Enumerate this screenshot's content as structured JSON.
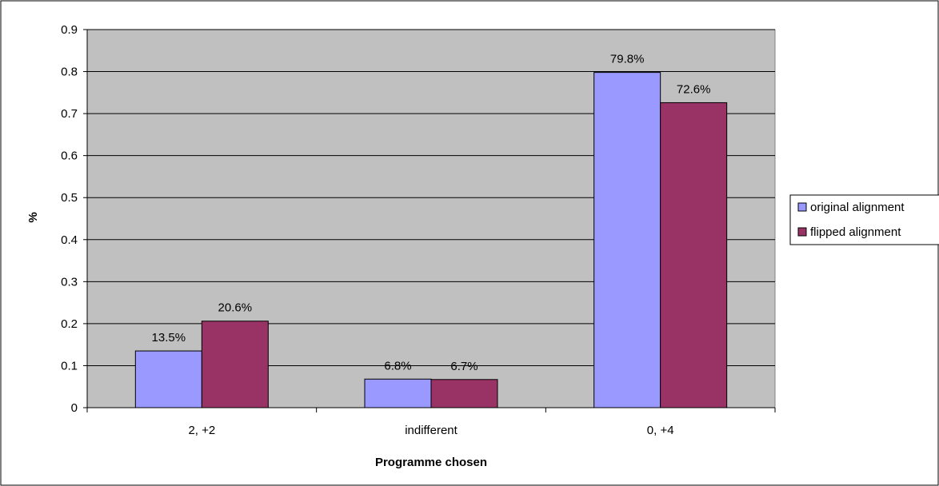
{
  "chart_data": {
    "type": "bar",
    "title": "",
    "xlabel": "Programme chosen",
    "ylabel": "%",
    "categories": [
      "2, +2",
      "indifferent",
      "0, +4"
    ],
    "series": [
      {
        "name": "original alignment",
        "values": [
          0.135,
          0.068,
          0.798
        ],
        "labels": [
          "13.5%",
          "6.8%",
          "79.8%"
        ],
        "color": "#9999ff"
      },
      {
        "name": "flipped alignment",
        "values": [
          0.206,
          0.067,
          0.726
        ],
        "labels": [
          "20.6%",
          "6.7%",
          "72.6%"
        ],
        "color": "#993366"
      }
    ],
    "ylim": [
      0,
      0.9
    ],
    "yticks": [
      "0",
      "0.1",
      "0.2",
      "0.3",
      "0.4",
      "0.5",
      "0.6",
      "0.7",
      "0.8",
      "0.9"
    ],
    "grid": true,
    "plot_background": "#c0c0c0",
    "legend_position": "right"
  }
}
